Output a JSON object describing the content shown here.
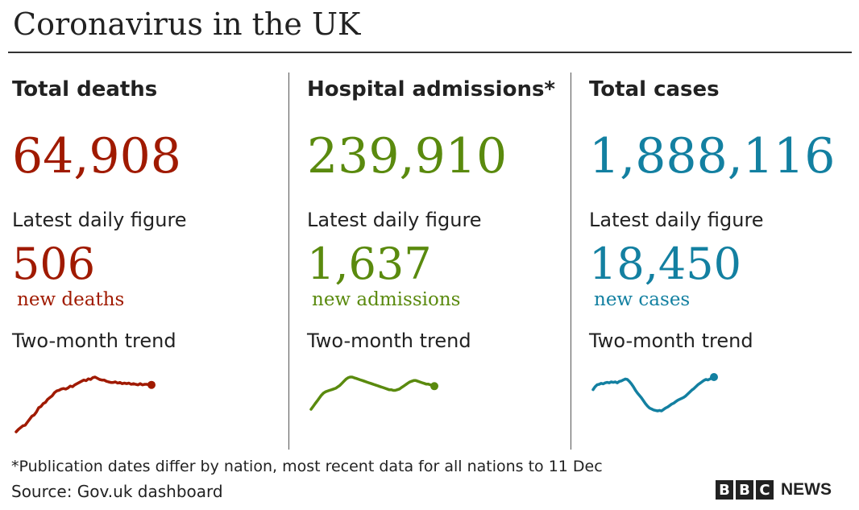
{
  "title": "Coronavirus in the UK",
  "chart_data": [
    {
      "type": "line",
      "title": "Total deaths",
      "total": "64,908",
      "daily_label": "Latest daily figure",
      "daily_value": "506",
      "daily_unit": "new deaths",
      "trend_label": "Two-month trend",
      "color": "#a01a00",
      "x": [
        1,
        2,
        3,
        4,
        5,
        6,
        7,
        8,
        9,
        10,
        11,
        12,
        13,
        14,
        15,
        16,
        17,
        18,
        19,
        20,
        21,
        22,
        23,
        24,
        25,
        26,
        27,
        28,
        29,
        30,
        31,
        32,
        33,
        34,
        35,
        36,
        37,
        38,
        39,
        40,
        41,
        42,
        43,
        44,
        45,
        46,
        47,
        48,
        49,
        50,
        51,
        52,
        53,
        54,
        55,
        56,
        57,
        58,
        59,
        60,
        61
      ],
      "values": [
        0,
        4,
        7,
        10,
        11,
        16,
        21,
        26,
        28,
        33,
        40,
        42,
        47,
        49,
        54,
        57,
        60,
        65,
        68,
        69,
        71,
        72,
        71,
        73,
        76,
        75,
        78,
        80,
        82,
        84,
        86,
        85,
        88,
        87,
        90,
        91,
        89,
        87,
        86,
        86,
        84,
        83,
        82,
        82,
        83,
        81,
        82,
        80,
        81,
        80,
        81,
        79,
        80,
        79,
        78,
        80,
        78,
        79,
        79,
        78,
        78
      ]
    },
    {
      "type": "line",
      "title": "Hospital admissions*",
      "total": "239,910",
      "daily_label": "Latest daily figure",
      "daily_value": "1,637",
      "daily_unit": "new admissions",
      "trend_label": "Two-month trend",
      "color": "#5a8a0e",
      "x": [
        1,
        2,
        3,
        4,
        5,
        6,
        7,
        8,
        9,
        10,
        11,
        12,
        13,
        14,
        15,
        16,
        17,
        18,
        19,
        20,
        21,
        22,
        23,
        24,
        25,
        26,
        27,
        28,
        29,
        30,
        31,
        32,
        33,
        34,
        35,
        36,
        37,
        38,
        39,
        40,
        41,
        42,
        43,
        44,
        45,
        46,
        47,
        48,
        49,
        50,
        51,
        52,
        53,
        54,
        55,
        56,
        57,
        58,
        59,
        60,
        61
      ],
      "values": [
        0,
        4,
        8,
        12,
        16,
        20,
        23,
        25,
        26,
        27,
        28,
        29,
        30,
        32,
        34,
        37,
        40,
        43,
        45,
        46,
        46,
        45,
        44,
        43,
        42,
        41,
        40,
        39,
        38,
        37,
        36,
        35,
        34,
        33,
        32,
        31,
        30,
        29,
        28,
        28,
        27,
        27,
        28,
        29,
        31,
        33,
        35,
        37,
        39,
        40,
        41,
        41,
        40,
        39,
        38,
        37,
        36,
        36,
        35,
        34,
        33
      ]
    },
    {
      "type": "line",
      "title": "Total cases",
      "total": "1,888,116",
      "daily_label": "Latest daily figure",
      "daily_value": "18,450",
      "daily_unit": "new cases",
      "trend_label": "Two-month trend",
      "color": "#1380a1",
      "x": [
        1,
        2,
        3,
        4,
        5,
        6,
        7,
        8,
        9,
        10,
        11,
        12,
        13,
        14,
        15,
        16,
        17,
        18,
        19,
        20,
        21,
        22,
        23,
        24,
        25,
        26,
        27,
        28,
        29,
        30,
        31,
        32,
        33,
        34,
        35,
        36,
        37,
        38,
        39,
        40,
        41,
        42,
        43,
        44,
        45,
        46,
        47,
        48,
        49,
        50,
        51,
        52,
        53,
        54,
        55,
        56,
        57,
        58,
        59,
        60,
        61
      ],
      "values": [
        60,
        66,
        70,
        71,
        73,
        72,
        74,
        75,
        74,
        76,
        75,
        76,
        74,
        77,
        78,
        80,
        82,
        81,
        77,
        72,
        66,
        59,
        53,
        48,
        43,
        37,
        31,
        26,
        22,
        20,
        18,
        17,
        16,
        17,
        16,
        19,
        22,
        24,
        27,
        30,
        32,
        35,
        38,
        40,
        42,
        44,
        47,
        51,
        55,
        59,
        62,
        66,
        70,
        73,
        76,
        79,
        81,
        80,
        82,
        84,
        86
      ]
    }
  ],
  "footnote": "*Publication dates differ by nation, most recent data for all nations to 11 Dec",
  "source": "Source: Gov.uk dashboard",
  "logo": {
    "letters": [
      "B",
      "B",
      "C"
    ],
    "text": "NEWS"
  }
}
